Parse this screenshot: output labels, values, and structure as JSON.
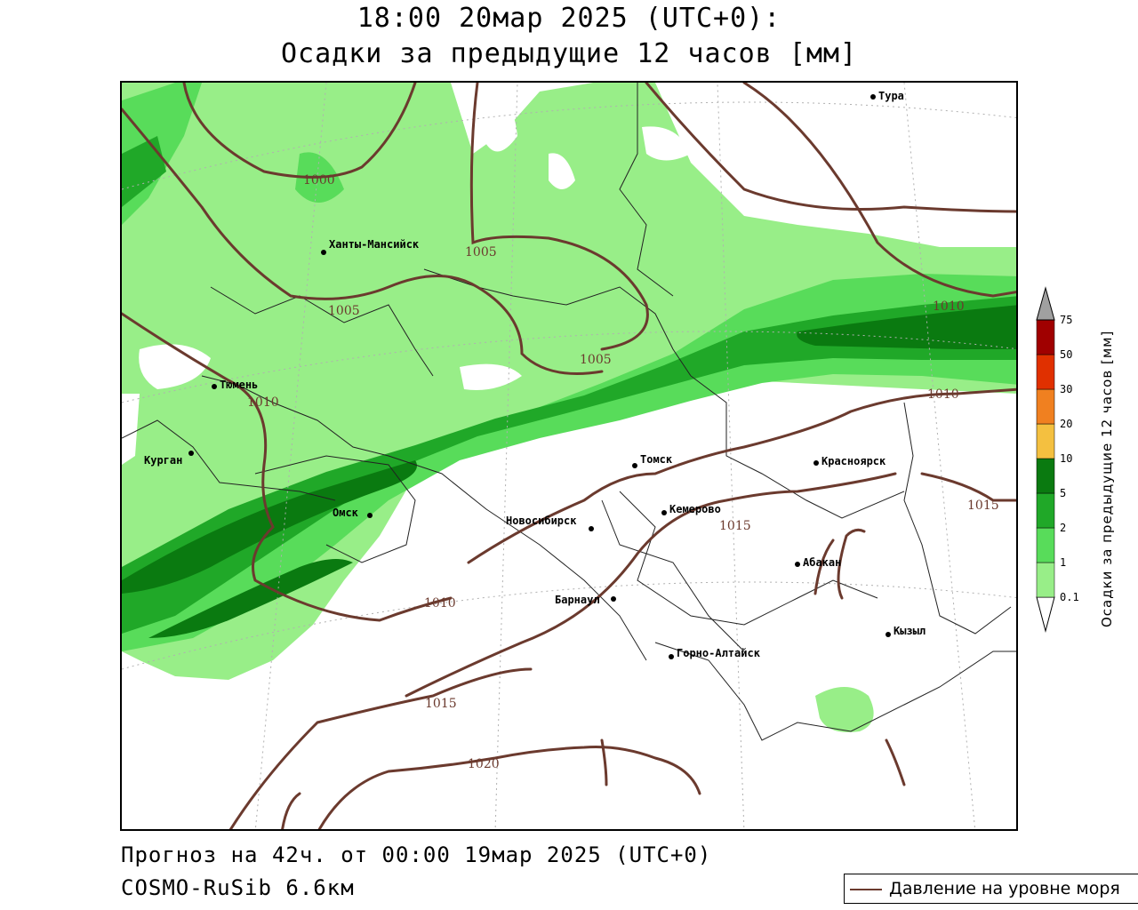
{
  "header": {
    "line1": "18:00 20мар 2025 (UTC+0):",
    "line2": "Осадки за предыдущие 12 часов [мм]"
  },
  "footer": {
    "forecast": "Прогноз на 42ч. от 00:00 19мар 2025 (UTC+0)",
    "model": "COSMO-RuSib 6.6км"
  },
  "legend": {
    "line_label": "Давление на уровне моря",
    "line_color": "#6b3a2e"
  },
  "colorbar": {
    "title": "Осадки за предыдущие 12 часов [мм]",
    "levels": [
      "0.1",
      "1",
      "2",
      "5",
      "10",
      "20",
      "30",
      "50",
      "75"
    ],
    "colors": [
      "#98ee88",
      "#58dc5a",
      "#20a828",
      "#0a7a10",
      "#f4c040",
      "#f08020",
      "#e03000",
      "#a00000",
      "#a0a0a0"
    ]
  },
  "cities": [
    {
      "name": "Тура"
    },
    {
      "name": "Ханты-Мансийск"
    },
    {
      "name": "Тюмень"
    },
    {
      "name": "Курган"
    },
    {
      "name": "Омск"
    },
    {
      "name": "Томск"
    },
    {
      "name": "Красноярск"
    },
    {
      "name": "Кемерово"
    },
    {
      "name": "Новосибирск"
    },
    {
      "name": "Абакан"
    },
    {
      "name": "Барнаул"
    },
    {
      "name": "Кызыл"
    },
    {
      "name": "Горно-Алтайск"
    }
  ],
  "isobar_labels": [
    "1000",
    "1005",
    "1005",
    "1005",
    "1010",
    "1010",
    "1010",
    "1010",
    "1015",
    "1015",
    "1015",
    "1020"
  ]
}
